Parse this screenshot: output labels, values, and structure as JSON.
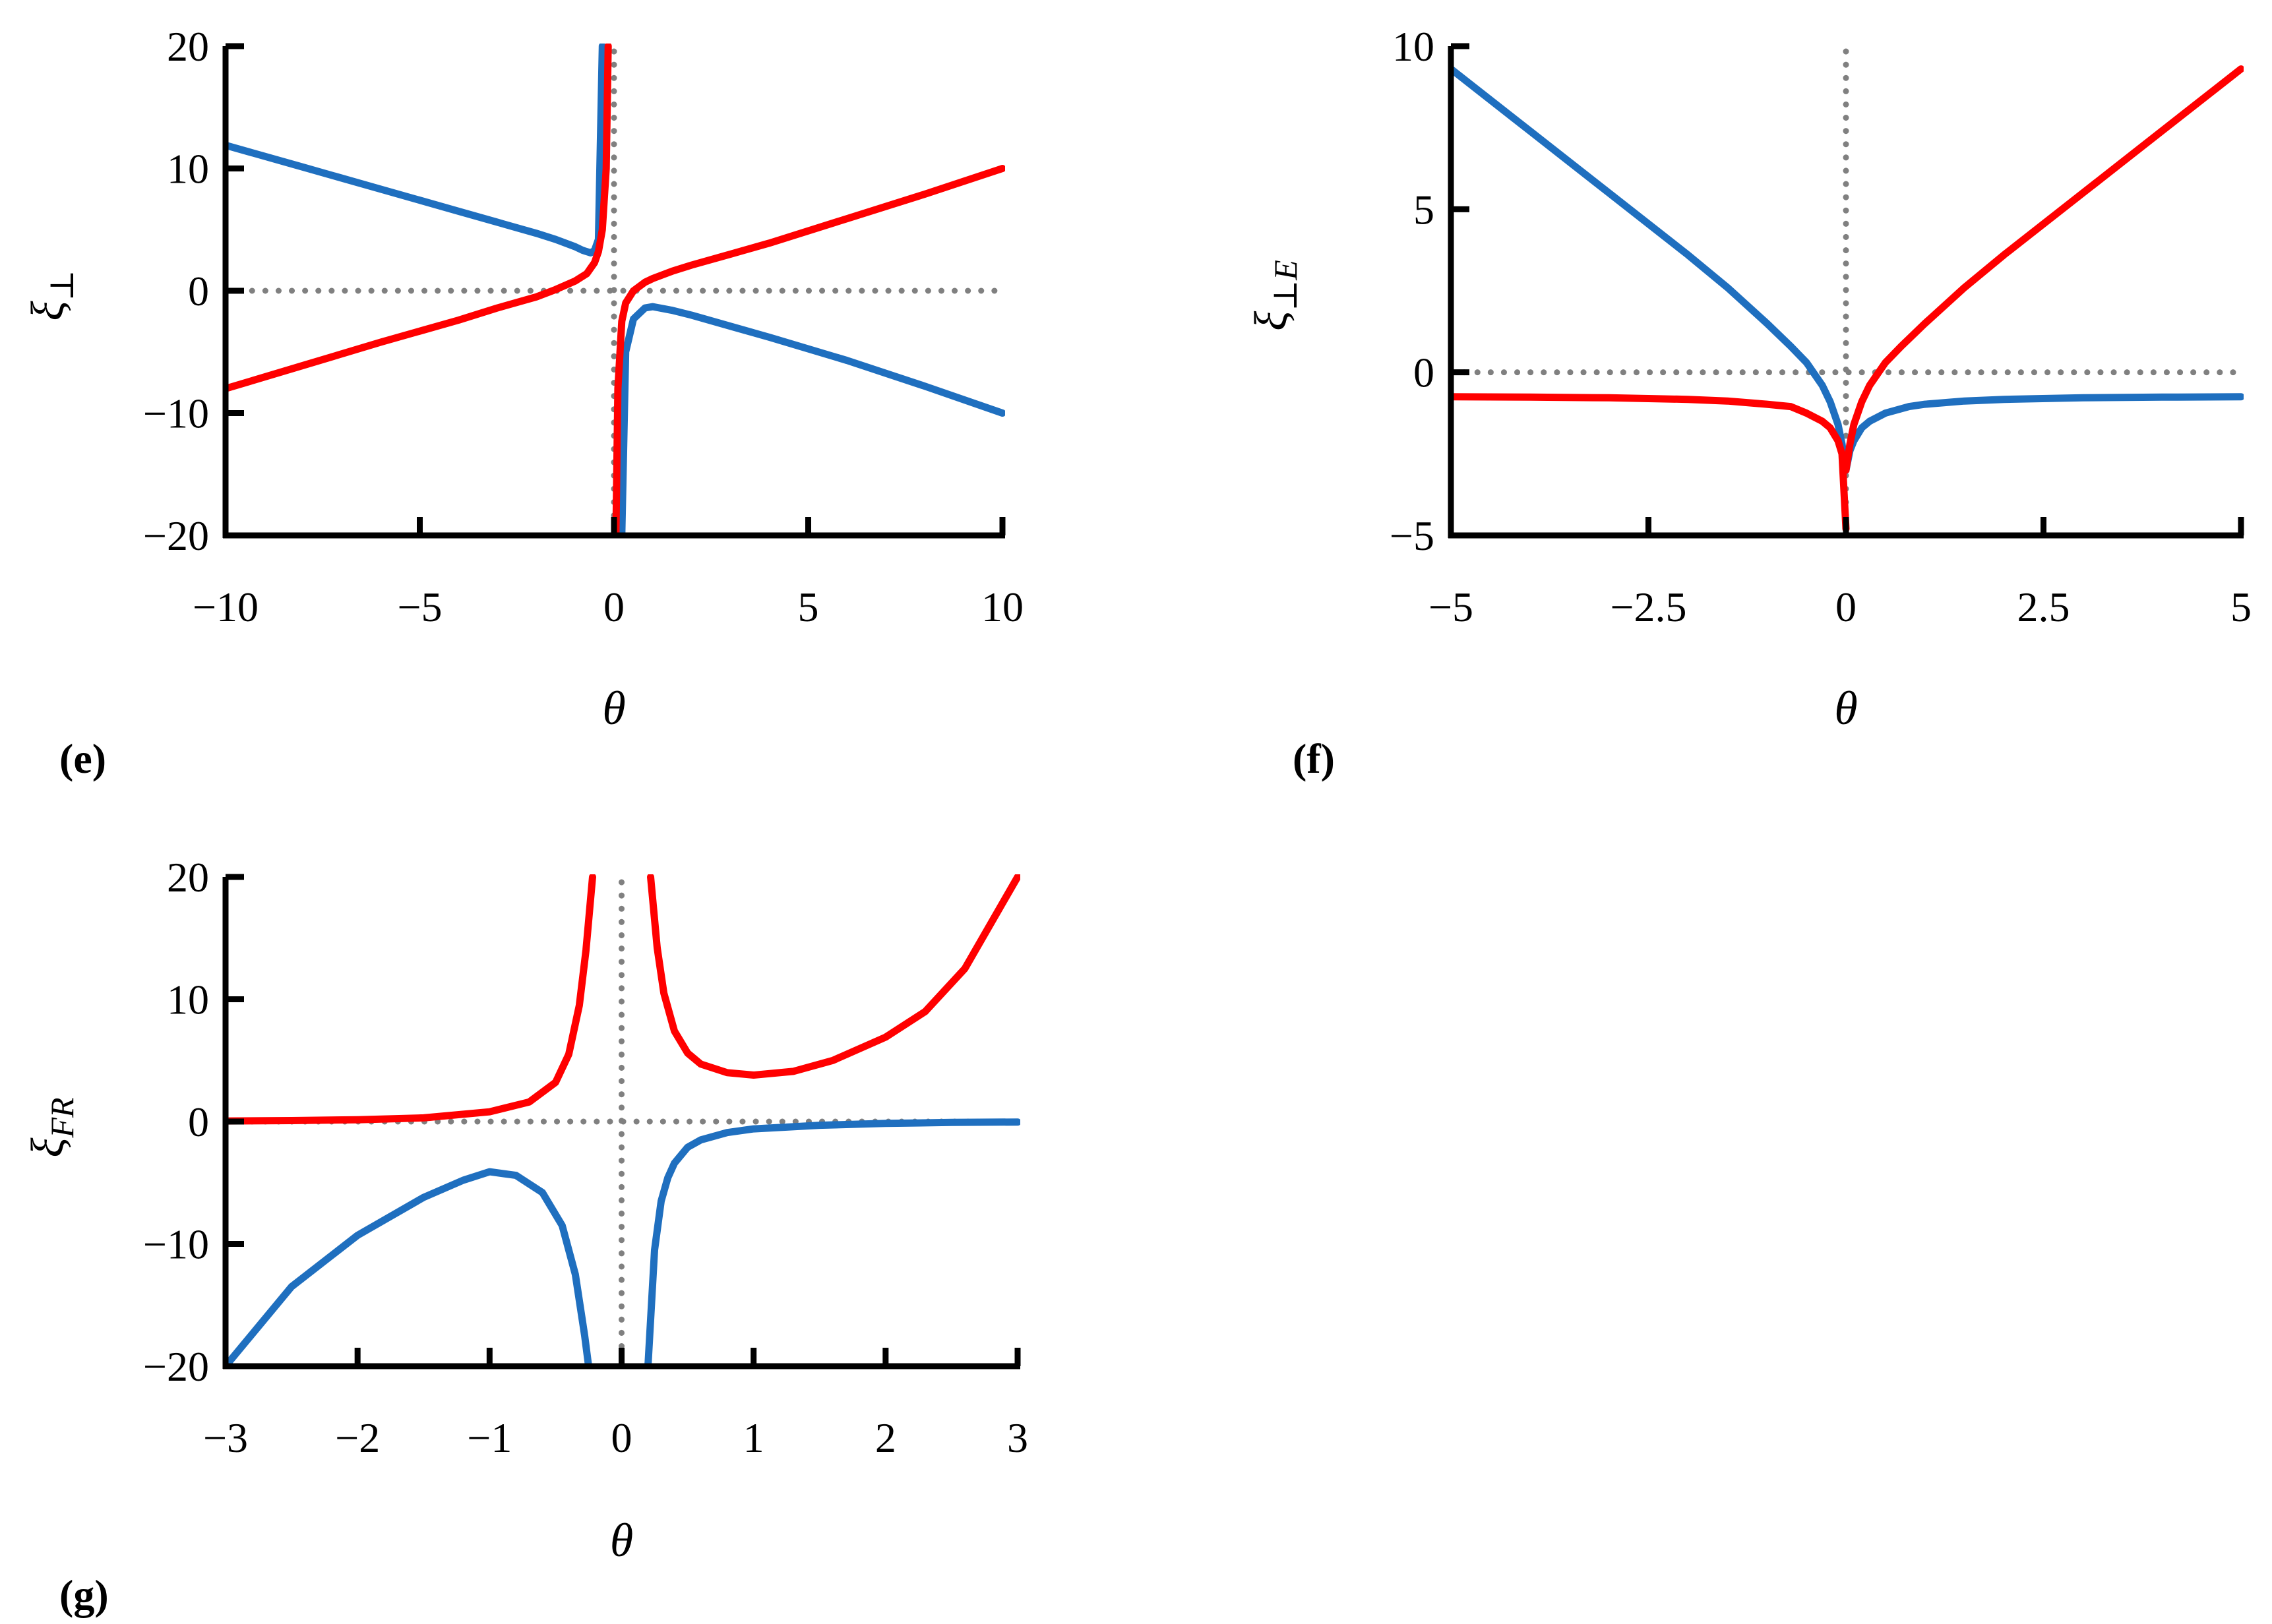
{
  "chart_data": [
    {
      "panel_label": "(e)",
      "type": "line",
      "xlabel": "θ",
      "ylabel": "ξ",
      "ylabel_sub": "⊥",
      "xlim": [
        -10,
        10
      ],
      "ylim": [
        -20,
        20
      ],
      "x_ticks": [
        -10,
        -5,
        0,
        5,
        10
      ],
      "x_tick_labels": [
        "−10",
        "−5",
        "0",
        "5",
        "10"
      ],
      "y_ticks": [
        -20,
        -10,
        0,
        10,
        20
      ],
      "y_tick_labels": [
        "−20",
        "−10",
        "0",
        "10",
        "20"
      ],
      "grid": false,
      "reference_lines": {
        "x0": true,
        "y0": true,
        "style": "dotted",
        "color": "#808080"
      },
      "series": [
        {
          "color": "#1f6fbf",
          "segments": [
            {
              "x": [
                -10,
                -8,
                -6,
                -4,
                -3,
                -2,
                -1.5,
                -1,
                -0.8,
                -0.6,
                -0.5,
                -0.4,
                -0.3
              ],
              "y": [
                11.9,
                10.1,
                8.3,
                6.5,
                5.6,
                4.7,
                4.2,
                3.6,
                3.3,
                3.1,
                3.3,
                4.2,
                20
              ]
            },
            {
              "x": [
                0.2,
                0.3,
                0.5,
                0.8,
                1,
                1.5,
                2,
                3,
                4,
                6,
                8,
                10
              ],
              "y": [
                -20,
                -5,
                -2.3,
                -1.4,
                -1.3,
                -1.6,
                -2.0,
                -2.9,
                -3.8,
                -5.7,
                -7.8,
                -10
              ]
            }
          ]
        },
        {
          "color": "#ff0000",
          "segments": [
            {
              "x": [
                -10,
                -8,
                -6,
                -4,
                -3,
                -2,
                -1.5,
                -1,
                -0.7,
                -0.5,
                -0.4,
                -0.3,
                -0.2,
                -0.15
              ],
              "y": [
                -8,
                -6.1,
                -4.2,
                -2.4,
                -1.4,
                -0.5,
                0.1,
                0.8,
                1.4,
                2.3,
                3.2,
                5,
                10,
                20
              ]
            },
            {
              "x": [
                0.05,
                0.1,
                0.2,
                0.3,
                0.5,
                0.8,
                1,
                1.5,
                2,
                3,
                4,
                6,
                8,
                10
              ],
              "y": [
                -20,
                -8,
                -2.5,
                -1,
                0,
                0.7,
                1,
                1.6,
                2.1,
                3,
                3.9,
                5.9,
                7.9,
                10
              ]
            }
          ]
        }
      ]
    },
    {
      "panel_label": "(f)",
      "type": "line",
      "xlabel": "θ",
      "ylabel": "ξ",
      "ylabel_sub": "⊥E",
      "xlim": [
        -5,
        5
      ],
      "ylim": [
        -5,
        10
      ],
      "x_ticks": [
        -5,
        -2.5,
        0,
        2.5,
        5
      ],
      "x_tick_labels": [
        "−5",
        "−2.5",
        "0",
        "2.5",
        "5"
      ],
      "y_ticks": [
        -5,
        0,
        5,
        10
      ],
      "y_tick_labels": [
        "−5",
        "0",
        "5",
        "10"
      ],
      "grid": false,
      "reference_lines": {
        "x0": true,
        "y0": true,
        "style": "dotted",
        "color": "#808080"
      },
      "series": [
        {
          "color": "#1f6fbf",
          "segments": [
            {
              "x": [
                -5,
                -4,
                -3,
                -2,
                -1.5,
                -1,
                -0.7,
                -0.5,
                -0.3,
                -0.2,
                -0.1,
                -0.05,
                0
              ],
              "y": [
                9.3,
                7.4,
                5.5,
                3.6,
                2.6,
                1.5,
                0.8,
                0.3,
                -0.4,
                -0.9,
                -1.6,
                -2.2,
                -3
              ]
            },
            {
              "x": [
                0,
                0.05,
                0.1,
                0.2,
                0.3,
                0.5,
                0.8,
                1,
                1.5,
                2,
                3,
                4,
                5
              ],
              "y": [
                -3,
                -2.4,
                -2.1,
                -1.7,
                -1.5,
                -1.25,
                -1.05,
                -0.98,
                -0.88,
                -0.83,
                -0.78,
                -0.76,
                -0.75
              ]
            }
          ]
        },
        {
          "color": "#ff0000",
          "segments": [
            {
              "x": [
                -5,
                -4,
                -3,
                -2,
                -1.5,
                -1,
                -0.7,
                -0.5,
                -0.3,
                -0.2,
                -0.1,
                -0.05,
                0
              ],
              "y": [
                -0.75,
                -0.76,
                -0.78,
                -0.83,
                -0.88,
                -0.98,
                -1.05,
                -1.25,
                -1.5,
                -1.7,
                -2.1,
                -2.5,
                -4.8
              ]
            },
            {
              "x": [
                0,
                0.05,
                0.1,
                0.2,
                0.3,
                0.5,
                0.7,
                1,
                1.5,
                2,
                3,
                4,
                5
              ],
              "y": [
                -3,
                -2.2,
                -1.6,
                -0.9,
                -0.4,
                0.3,
                0.8,
                1.5,
                2.6,
                3.6,
                5.5,
                7.4,
                9.3
              ]
            }
          ]
        }
      ]
    },
    {
      "panel_label": "(g)",
      "type": "line",
      "xlabel": "θ",
      "ylabel": "ξ",
      "ylabel_sub": "FR",
      "xlim": [
        -3,
        3
      ],
      "ylim": [
        -20,
        20
      ],
      "x_ticks": [
        -3,
        -2,
        -1,
        0,
        1,
        2,
        3
      ],
      "x_tick_labels": [
        "−3",
        "−2",
        "−1",
        "0",
        "1",
        "2",
        "3"
      ],
      "y_ticks": [
        -20,
        -10,
        0,
        10,
        20
      ],
      "y_tick_labels": [
        "−20",
        "−10",
        "0",
        "10",
        "20"
      ],
      "grid": false,
      "reference_lines": {
        "x0": true,
        "y0": true,
        "style": "dotted",
        "color": "#808080"
      },
      "series": [
        {
          "color": "#1f6fbf",
          "segments": [
            {
              "x": [
                -3,
                -2.5,
                -2,
                -1.5,
                -1.2,
                -1,
                -0.8,
                -0.6,
                -0.45,
                -0.35,
                -0.28,
                -0.25
              ],
              "y": [
                -20,
                -13.5,
                -9.3,
                -6.2,
                -4.8,
                -4.1,
                -4.4,
                -5.8,
                -8.5,
                -12.5,
                -17.5,
                -20
              ]
            },
            {
              "x": [
                0.2,
                0.25,
                0.3,
                0.35,
                0.4,
                0.5,
                0.6,
                0.8,
                1,
                1.5,
                2,
                2.5,
                3
              ],
              "y": [
                -20,
                -10.5,
                -6.5,
                -4.6,
                -3.4,
                -2.1,
                -1.5,
                -0.9,
                -0.6,
                -0.3,
                -0.15,
                -0.07,
                -0.04
              ]
            }
          ]
        },
        {
          "color": "#ff0000",
          "segments": [
            {
              "x": [
                -3,
                -2.5,
                -2,
                -1.5,
                -1,
                -0.7,
                -0.5,
                -0.4,
                -0.32,
                -0.27,
                -0.22
              ],
              "y": [
                0.05,
                0.08,
                0.15,
                0.3,
                0.8,
                1.6,
                3.2,
                5.5,
                9.5,
                14,
                20
              ]
            },
            {
              "x": [
                0.22,
                0.27,
                0.32,
                0.4,
                0.5,
                0.6,
                0.8,
                1,
                1.3,
                1.6,
                2,
                2.3,
                2.6,
                3
              ],
              "y": [
                20,
                14.2,
                10.5,
                7.4,
                5.6,
                4.7,
                4.0,
                3.8,
                4.1,
                5.0,
                6.9,
                9.0,
                12.5,
                20
              ]
            }
          ]
        }
      ]
    }
  ]
}
